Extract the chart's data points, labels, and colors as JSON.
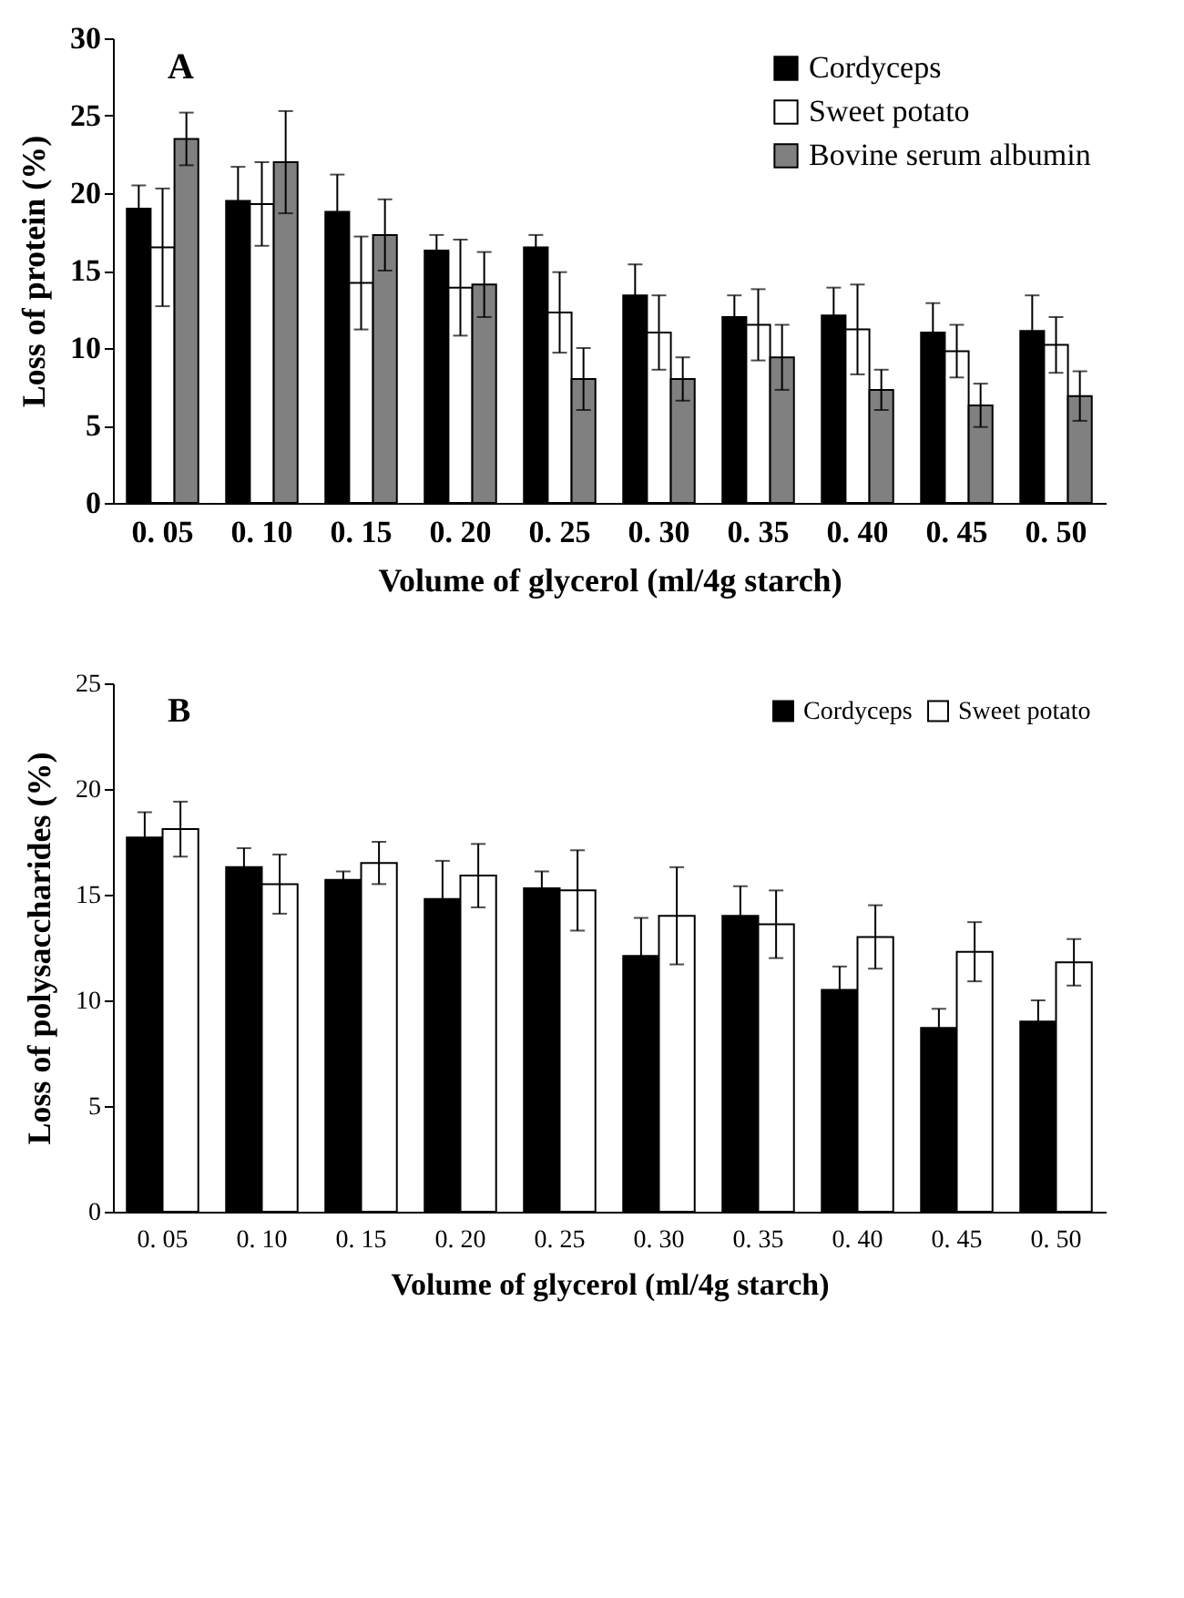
{
  "chart_data": [
    {
      "type": "bar",
      "annotations": [
        "A"
      ],
      "xlabel": "Volume of glycerol (ml/4g starch)",
      "ylabel": "Loss of protein (%)",
      "categories": [
        "0. 05",
        "0. 10",
        "0. 15",
        "0. 20",
        "0. 25",
        "0. 30",
        "0. 35",
        "0. 40",
        "0. 45",
        "0. 50"
      ],
      "ylim": [
        0,
        30
      ],
      "yticks": [
        0,
        5,
        10,
        15,
        20,
        25,
        30
      ],
      "legend": "top right",
      "grid": false,
      "series": [
        {
          "name": "Cordyceps",
          "color": "#000000",
          "values": [
            19.0,
            19.5,
            18.8,
            16.3,
            16.5,
            13.4,
            12.0,
            12.1,
            11.0,
            11.1
          ],
          "errors": [
            1.5,
            2.2,
            2.4,
            1.0,
            0.8,
            2.0,
            1.4,
            1.8,
            1.9,
            2.3
          ]
        },
        {
          "name": "Sweet potato",
          "color": "#ffffff",
          "values": [
            16.5,
            19.3,
            14.2,
            13.9,
            12.3,
            11.0,
            11.5,
            11.2,
            9.8,
            10.2
          ],
          "errors": [
            3.8,
            2.7,
            3.0,
            3.1,
            2.6,
            2.4,
            2.3,
            2.9,
            1.7,
            1.8
          ]
        },
        {
          "name": "Bovine serum albumin",
          "color": "#808080",
          "values": [
            23.5,
            22.0,
            17.3,
            14.1,
            8.0,
            8.0,
            9.4,
            7.3,
            6.3,
            6.9
          ],
          "errors": [
            1.7,
            3.3,
            2.3,
            2.1,
            2.0,
            1.4,
            2.1,
            1.3,
            1.4,
            1.6
          ]
        }
      ]
    },
    {
      "type": "bar",
      "annotations": [
        "B"
      ],
      "xlabel": "Volume of glycerol (ml/4g starch)",
      "ylabel": "Loss of polysaccharides (%)",
      "categories": [
        "0. 05",
        "0. 10",
        "0. 15",
        "0. 20",
        "0. 25",
        "0. 30",
        "0. 35",
        "0. 40",
        "0. 45",
        "0. 50"
      ],
      "ylim": [
        0,
        25
      ],
      "yticks": [
        0,
        5,
        10,
        15,
        20,
        25
      ],
      "legend": "top right",
      "grid": false,
      "series": [
        {
          "name": "Cordyceps",
          "color": "#000000",
          "values": [
            17.7,
            16.3,
            15.7,
            14.8,
            15.3,
            12.1,
            14.0,
            10.5,
            8.7,
            9.0
          ],
          "errors": [
            1.2,
            0.9,
            0.4,
            1.8,
            0.8,
            1.8,
            1.4,
            1.1,
            0.9,
            1.0
          ]
        },
        {
          "name": "Sweet potato",
          "color": "#ffffff",
          "values": [
            18.1,
            15.5,
            16.5,
            15.9,
            15.2,
            14.0,
            13.6,
            13.0,
            12.3,
            11.8
          ],
          "errors": [
            1.3,
            1.4,
            1.0,
            1.5,
            1.9,
            2.3,
            1.6,
            1.5,
            1.4,
            1.1
          ]
        }
      ]
    }
  ]
}
